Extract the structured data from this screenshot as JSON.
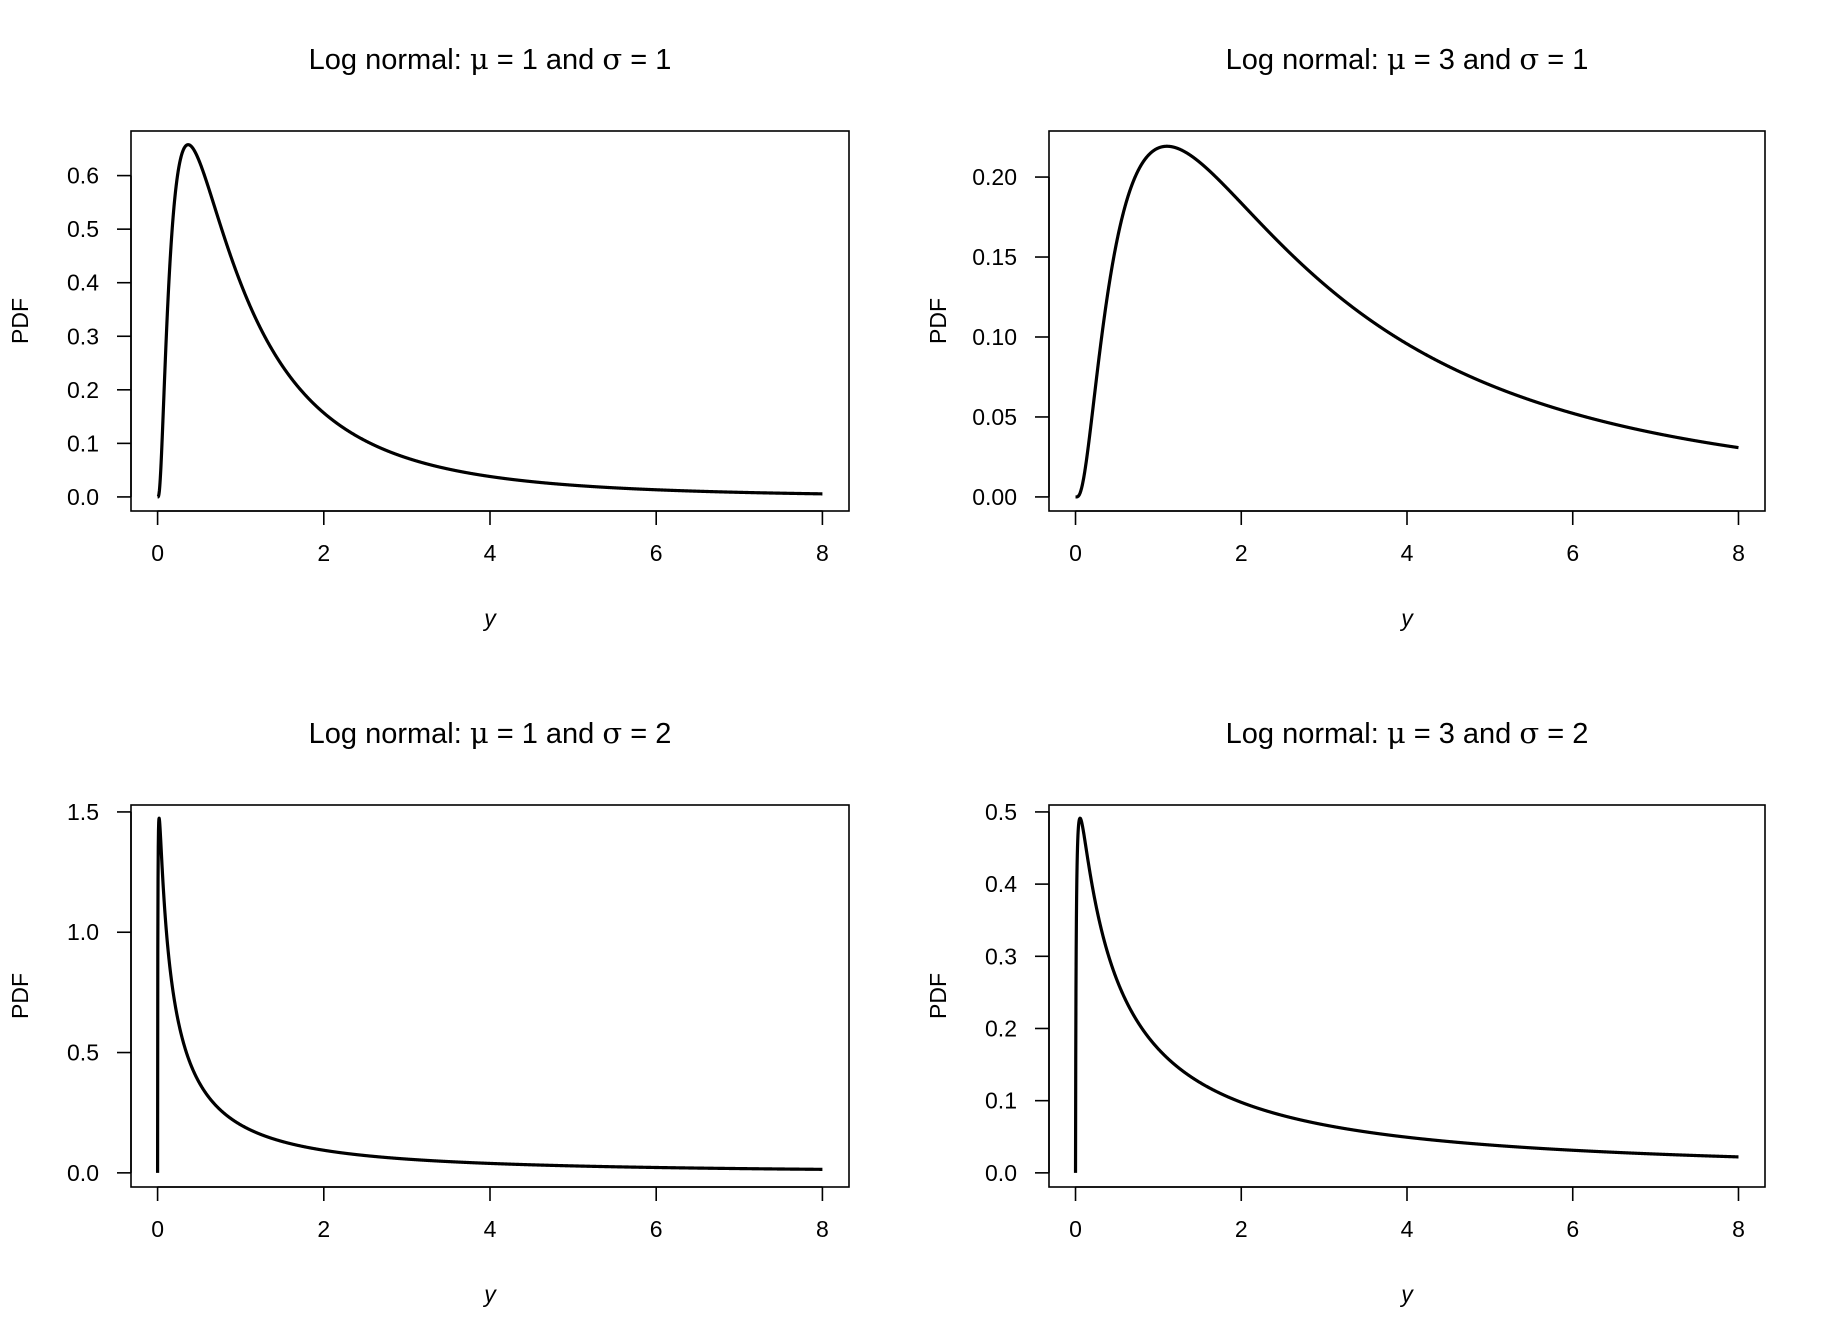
{
  "chart_data": [
    {
      "type": "line",
      "title": {
        "prefix": "Log normal: ",
        "mu_symbol": "μ",
        "mu_text": " = 1 and ",
        "sigma_symbol": "σ",
        "sigma_text": " = 1"
      },
      "distribution": "lognormal",
      "params": {
        "mu": 1,
        "sigma": 1
      },
      "xlabel": "y",
      "ylabel": "PDF",
      "xlim": [
        0,
        8
      ],
      "ylim": [
        0,
        0.657
      ],
      "xticks": [
        "0",
        "2",
        "4",
        "6",
        "8"
      ],
      "yticks": [
        "0.0",
        "0.1",
        "0.2",
        "0.3",
        "0.4",
        "0.5",
        "0.6"
      ],
      "x": [
        0,
        0.1,
        0.2,
        0.37,
        0.5,
        1,
        2,
        3,
        4,
        6,
        8
      ],
      "y": [
        0,
        0.282,
        0.546,
        0.657,
        0.627,
        0.399,
        0.157,
        0.0727,
        0.0382,
        0.0134,
        0.0057
      ],
      "grid": false,
      "color": "#000000"
    },
    {
      "type": "line",
      "title": {
        "prefix": "Log normal: ",
        "mu_symbol": "μ",
        "mu_text": " = 3 and ",
        "sigma_symbol": "σ",
        "sigma_text": " = 1"
      },
      "distribution": "lognormal",
      "params": {
        "mu": 3,
        "sigma": 1
      },
      "xlabel": "y",
      "ylabel": "PDF",
      "xlim": [
        0,
        8
      ],
      "ylim": [
        0,
        0.22
      ],
      "xticks": [
        "0",
        "2",
        "4",
        "6",
        "8"
      ],
      "yticks": [
        "0.00",
        "0.05",
        "0.10",
        "0.15",
        "0.20"
      ],
      "x": [
        0,
        0.5,
        1,
        1.1,
        2,
        4,
        6,
        8
      ],
      "y": [
        0,
        0.16,
        0.218,
        0.22,
        0.184,
        0.0957,
        0.0523,
        0.0308
      ],
      "grid": false,
      "color": "#000000"
    },
    {
      "type": "line",
      "title": {
        "prefix": "Log normal: ",
        "mu_symbol": "μ",
        "mu_text": " = 1 and ",
        "sigma_symbol": "σ",
        "sigma_text": " = 2"
      },
      "distribution": "lognormal",
      "params": {
        "mu": 1,
        "sigma": 2
      },
      "xlabel": "y",
      "ylabel": "PDF",
      "xlim": [
        0,
        8
      ],
      "ylim": [
        0,
        1.47
      ],
      "xticks": [
        "0",
        "2",
        "4",
        "6",
        "8"
      ],
      "yticks": [
        "0.0",
        "0.5",
        "1.0",
        "1.5"
      ],
      "x": [
        0,
        0.018,
        0.5,
        1,
        2,
        4,
        6,
        8
      ],
      "y": [
        0,
        1.47,
        0.376,
        0.199,
        0.0939,
        0.0392,
        0.0223,
        0.0145
      ],
      "grid": false,
      "color": "#000000"
    },
    {
      "type": "line",
      "title": {
        "prefix": "Log normal: ",
        "mu_symbol": "μ",
        "mu_text": " = 3 and ",
        "sigma_symbol": "σ",
        "sigma_text": " = 2"
      },
      "distribution": "lognormal",
      "params": {
        "mu": 3,
        "sigma": 2
      },
      "xlabel": "y",
      "ylabel": "PDF",
      "xlim": [
        0,
        8
      ],
      "ylim": [
        0,
        0.49
      ],
      "xticks": [
        "0",
        "2",
        "4",
        "6",
        "8"
      ],
      "yticks": [
        "0.0",
        "0.1",
        "0.2",
        "0.3",
        "0.4",
        "0.5"
      ],
      "x": [
        0,
        0.055,
        0.5,
        1,
        2,
        4,
        6,
        8
      ],
      "y": [
        0,
        0.49,
        0.267,
        0.172,
        0.0977,
        0.0494,
        0.0313,
        0.0221
      ],
      "grid": false,
      "color": "#000000"
    }
  ]
}
